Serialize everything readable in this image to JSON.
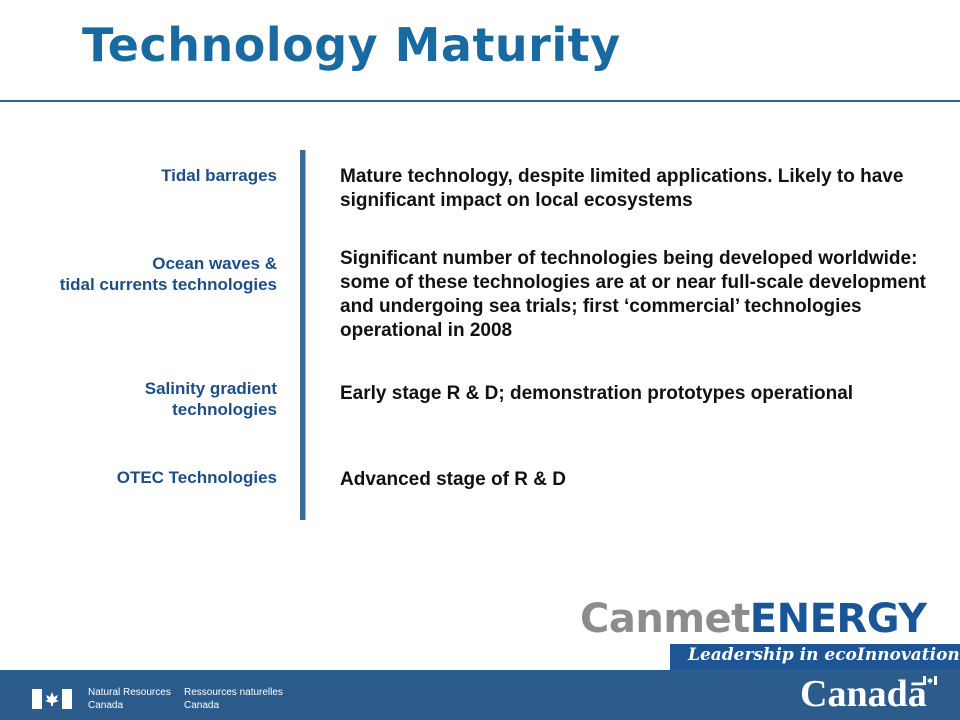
{
  "slide": {
    "title": "Technology Maturity"
  },
  "rows": [
    {
      "label_lines": [
        "Tidal barrages"
      ],
      "description": "Mature technology, despite limited applications.  Likely to have significant impact on local ecosystems"
    },
    {
      "label_lines": [
        "Ocean waves &",
        "tidal currents technologies"
      ],
      "description": "Significant number of technologies being developed worldwide: some of these technologies are at or near full-scale development and undergoing sea trials; first ‘commercial’ technologies operational in 2008"
    },
    {
      "label_lines": [
        "Salinity gradient",
        "technologies"
      ],
      "description": "Early stage R & D; demonstration prototypes operational"
    },
    {
      "label_lines": [
        "OTEC Technologies"
      ],
      "description": "Advanced stage of R & D"
    }
  ],
  "branding": {
    "logo_part1": "Canmet",
    "logo_part2": "ENERGY",
    "tagline": "Leadership in ecoInnovation"
  },
  "footer": {
    "dept_en_line1": "Natural Resources",
    "dept_en_line2": "Canada",
    "dept_fr_line1": "Ressources naturelles",
    "dept_fr_line2": "Canada",
    "wordmark": "Canadā",
    "flag_icon": "canada-flag-icon"
  },
  "colors": {
    "title": "#1a6aa2",
    "labels": "#1d4f86",
    "footer_bar": "#2c5c8b",
    "tagline_bar": "#1e5594"
  }
}
